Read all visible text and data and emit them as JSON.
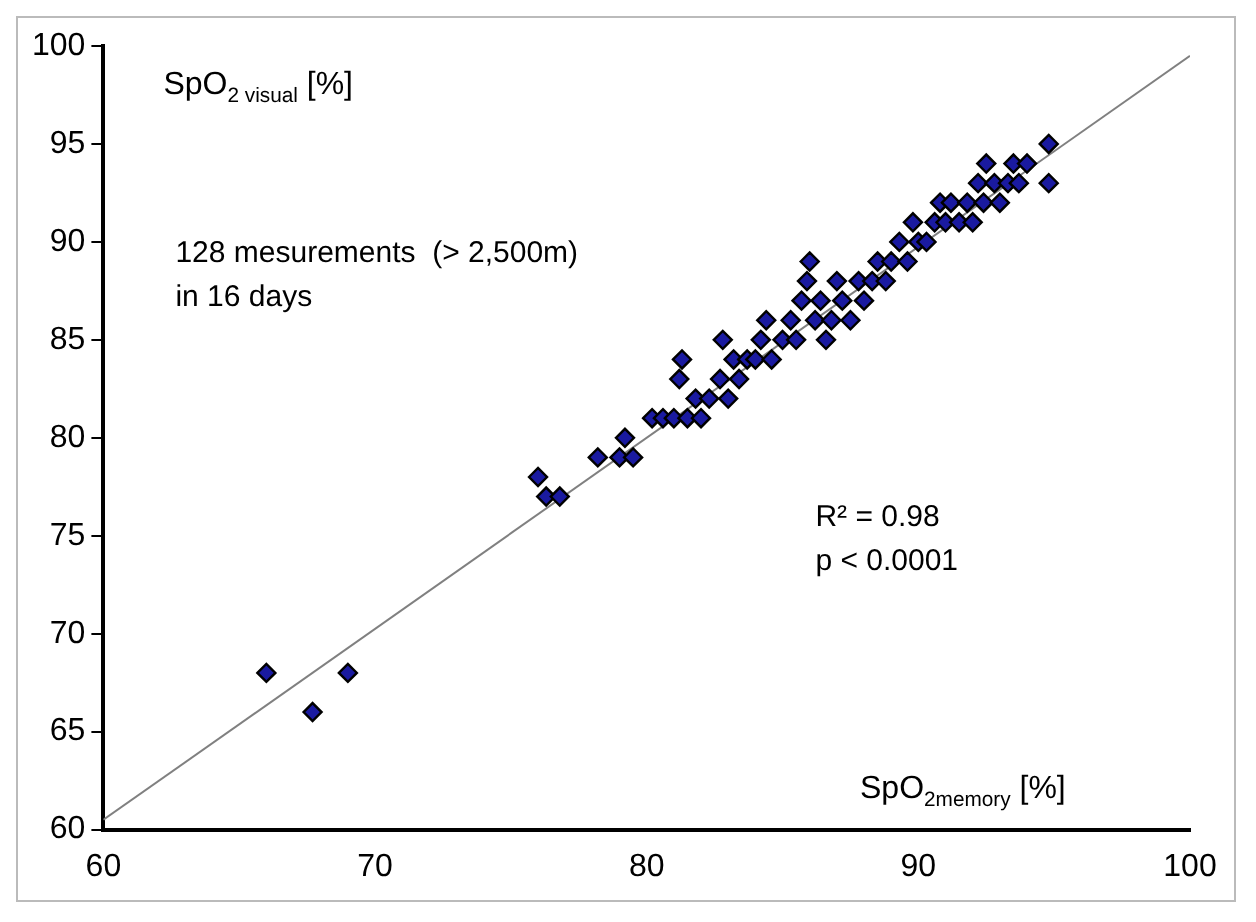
{
  "chart_data": {
    "type": "scatter",
    "xlabel": "SpO$_{2memory}$ [%]",
    "ylabel": "SpO$_{2 visual}$ [%]",
    "annotations": [
      "128 mesurements  (> 2,500m)\nin 16 days",
      "R² = 0.98\np < 0.0001"
    ],
    "xlim": [
      60,
      100
    ],
    "ylim": [
      60,
      100
    ],
    "xticks": [
      60,
      70,
      80,
      90,
      100
    ],
    "yticks": [
      60,
      65,
      70,
      75,
      80,
      85,
      90,
      95,
      100
    ],
    "grid": false,
    "legend": false,
    "series": [
      {
        "marker": "diamond",
        "color": "#1a1aa0",
        "x": [
          66,
          67.7,
          69,
          76,
          76.3,
          76.8,
          78.2,
          79,
          79.2,
          79.5,
          80.2,
          80.6,
          81,
          81.2,
          81.3,
          81.5,
          81.8,
          82,
          82.3,
          82.7,
          82.8,
          83,
          83.2,
          83.4,
          83.7,
          84,
          84.2,
          84.4,
          84.6,
          85,
          85.3,
          85.5,
          85.7,
          85.9,
          86,
          86.2,
          86.4,
          86.6,
          86.8,
          87,
          87.2,
          87.5,
          87.8,
          88,
          88.3,
          88.5,
          88.8,
          89,
          89.3,
          89.6,
          89.8,
          90,
          90.3,
          90.6,
          90.8,
          91,
          91.2,
          91.5,
          91.8,
          92,
          92.2,
          92.4,
          92.5,
          92.8,
          93,
          93.3,
          93.5,
          93.7,
          94,
          94.8,
          94.8
        ],
        "values": [
          68,
          66,
          68,
          78,
          77,
          77,
          79,
          79,
          80,
          79,
          81,
          81,
          81,
          83,
          84,
          81,
          82,
          81,
          82,
          83,
          85,
          82,
          84,
          83,
          84,
          84,
          85,
          86,
          84,
          85,
          86,
          85,
          87,
          88,
          89,
          86,
          87,
          85,
          86,
          88,
          87,
          86,
          88,
          87,
          88,
          89,
          88,
          89,
          90,
          89,
          91,
          90,
          90,
          91,
          92,
          91,
          92,
          91,
          92,
          91,
          93,
          92,
          94,
          93,
          92,
          93,
          94,
          93,
          94,
          95,
          93
        ]
      },
      {
        "type": "line",
        "marker": "none",
        "color": "#808080",
        "x": [
          60,
          100
        ],
        "values": [
          60.5,
          99.5
        ]
      }
    ]
  }
}
